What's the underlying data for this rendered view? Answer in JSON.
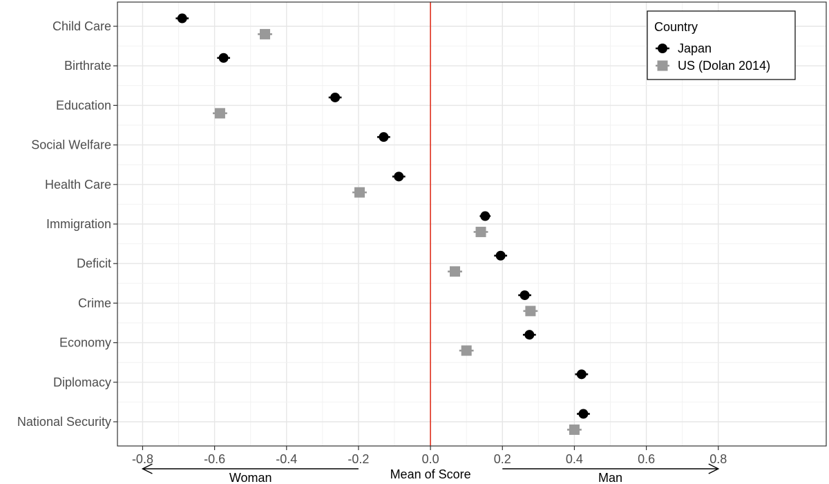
{
  "chart_data": {
    "type": "scatter",
    "xlabel": "Mean of Score",
    "xlim": [
      -0.87,
      1.1
    ],
    "x_ticks": [
      -0.8,
      -0.6,
      -0.4,
      -0.2,
      0.0,
      0.2,
      0.4,
      0.6,
      0.8
    ],
    "x_tick_labels": [
      "-0.8",
      "-0.6",
      "-0.4",
      "-0.2",
      "0.0",
      "0.2",
      "0.4",
      "0.6",
      "0.8"
    ],
    "reference_line": {
      "x": 0.0,
      "color": "#e0301e"
    },
    "arrow_left": {
      "label": "Woman",
      "from": -0.2,
      "to": -0.8
    },
    "arrow_right": {
      "label": "Man",
      "from": 0.2,
      "to": 0.8
    },
    "grid": true,
    "categories": [
      "Child Care",
      "Birthrate",
      "Education",
      "Social Welfare",
      "Health Care",
      "Immigration",
      "Deficit",
      "Crime",
      "Economy",
      "Diplomacy",
      "National Security"
    ],
    "legend": {
      "title": "Country",
      "position": "top-right"
    },
    "series": [
      {
        "name": "Japan",
        "marker": "circle",
        "color": "#000000",
        "values": [
          -0.69,
          -0.575,
          -0.265,
          -0.13,
          -0.088,
          0.152,
          0.195,
          0.262,
          0.275,
          0.42,
          0.425
        ],
        "error": [
          0.018,
          0.018,
          0.018,
          0.018,
          0.018,
          0.015,
          0.018,
          0.018,
          0.018,
          0.018,
          0.018
        ]
      },
      {
        "name": "US (Dolan 2014)",
        "marker": "square",
        "color": "#999999",
        "values": [
          -0.46,
          null,
          -0.585,
          null,
          -0.197,
          0.14,
          0.068,
          0.278,
          0.1,
          null,
          0.4
        ],
        "error": [
          0.02,
          null,
          0.02,
          null,
          0.02,
          0.02,
          0.02,
          0.02,
          0.02,
          null,
          0.02
        ]
      }
    ]
  }
}
